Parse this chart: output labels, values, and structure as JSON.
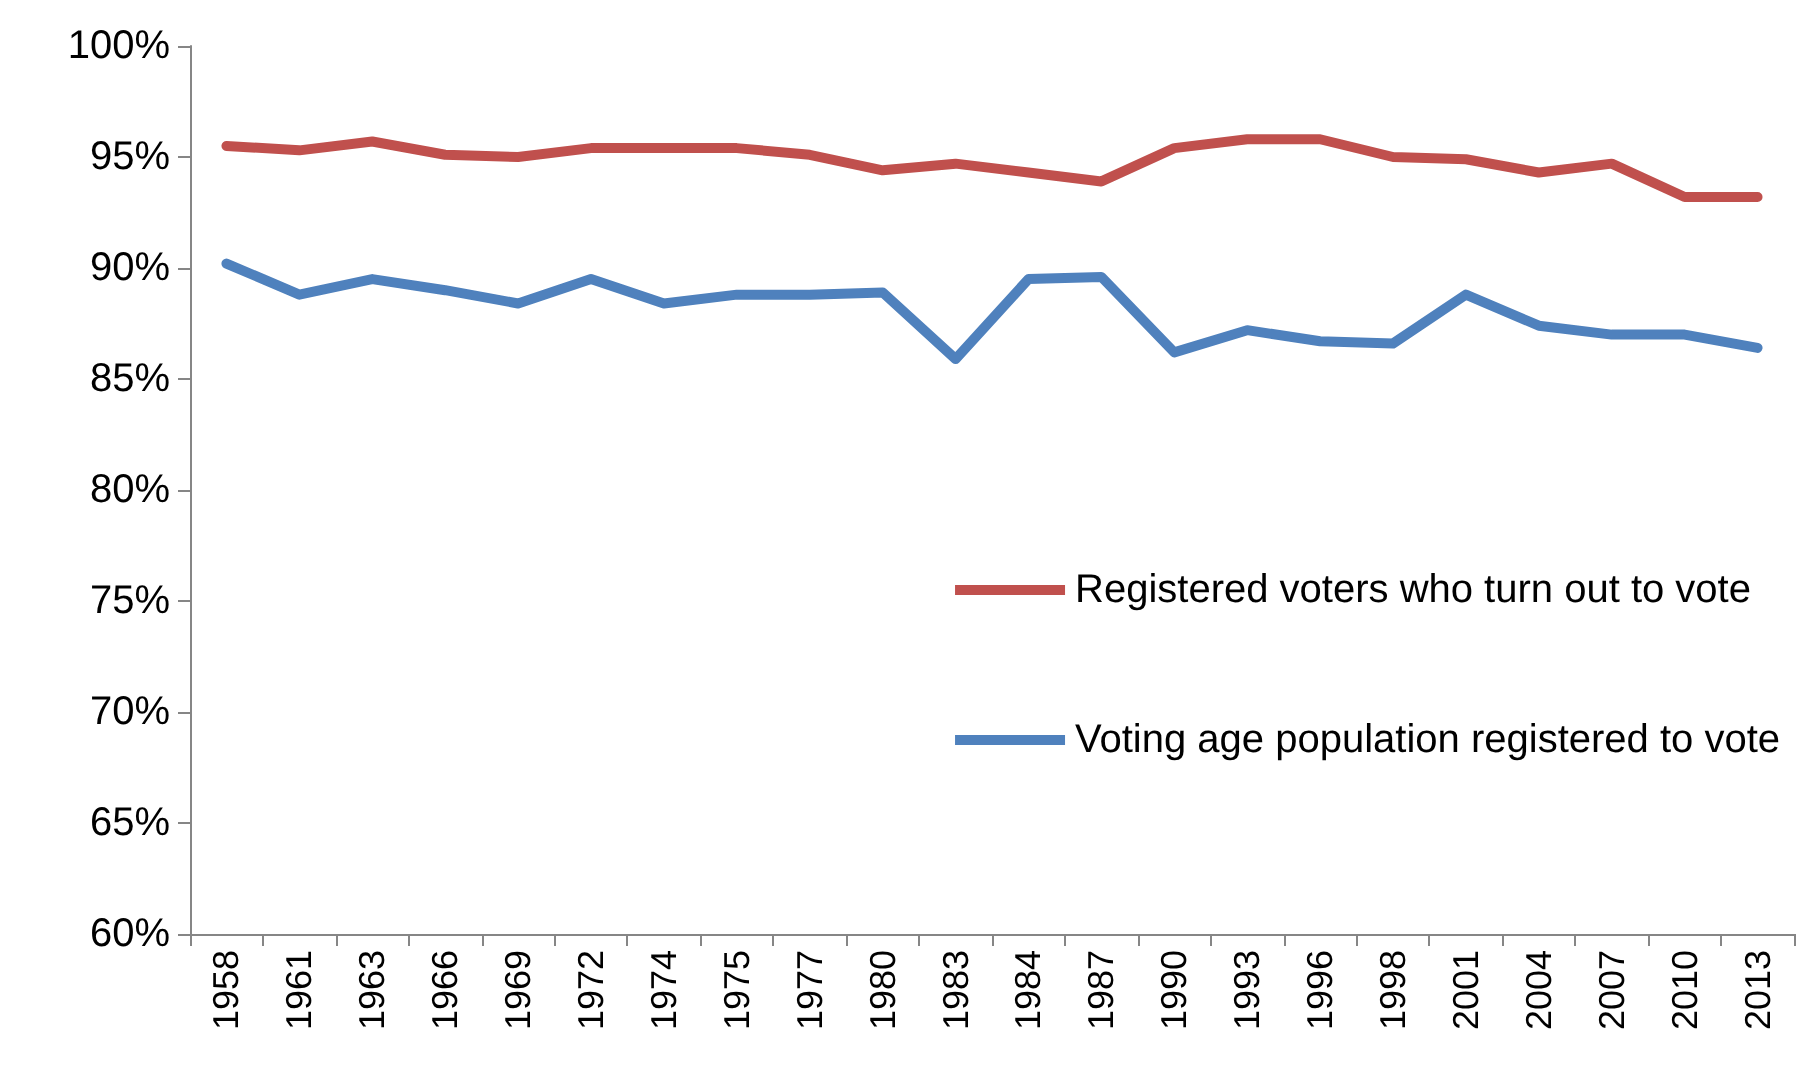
{
  "chart_data": {
    "type": "line",
    "categories": [
      "1958",
      "1961",
      "1963",
      "1966",
      "1969",
      "1972",
      "1974",
      "1975",
      "1977",
      "1980",
      "1983",
      "1984",
      "1987",
      "1990",
      "1993",
      "1996",
      "1998",
      "2001",
      "2004",
      "2007",
      "2010",
      "2013"
    ],
    "series": [
      {
        "name": "Registered voters who turn out to vote",
        "color": "#c0504d",
        "values": [
          95.5,
          95.3,
          95.7,
          95.1,
          95.0,
          95.4,
          95.4,
          95.4,
          95.1,
          94.4,
          94.7,
          94.3,
          93.9,
          95.4,
          95.8,
          95.8,
          95.0,
          94.9,
          94.3,
          94.7,
          93.2,
          93.2
        ]
      },
      {
        "name": "Voting age population registered to vote",
        "color": "#4f81bd",
        "values": [
          90.2,
          88.8,
          89.5,
          89.0,
          88.4,
          89.5,
          88.4,
          88.8,
          88.8,
          88.9,
          85.9,
          89.5,
          89.6,
          86.2,
          87.2,
          86.7,
          86.6,
          88.8,
          87.4,
          87.0,
          87.0,
          86.4
        ]
      }
    ],
    "ylim": [
      60,
      100
    ],
    "yticks": [
      {
        "value": 60,
        "label": "60%"
      },
      {
        "value": 65,
        "label": "65%"
      },
      {
        "value": 70,
        "label": "70%"
      },
      {
        "value": 75,
        "label": "75%"
      },
      {
        "value": 80,
        "label": "80%"
      },
      {
        "value": 85,
        "label": "85%"
      },
      {
        "value": 90,
        "label": "90%"
      },
      {
        "value": 95,
        "label": "95%"
      },
      {
        "value": 100,
        "label": "100%"
      }
    ],
    "grid": false,
    "legend": "right",
    "marker": "none",
    "line_style": "solid"
  }
}
